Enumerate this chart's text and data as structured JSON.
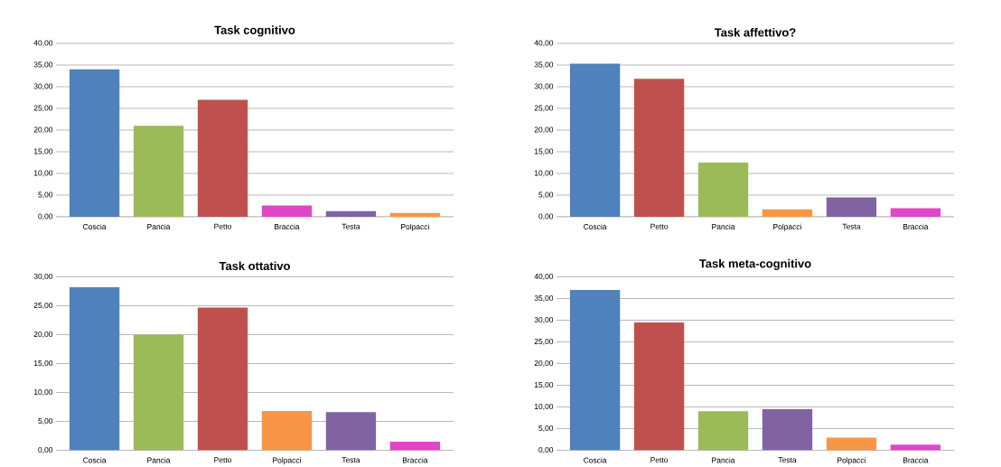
{
  "chart_data": [
    {
      "type": "bar",
      "title": "Task cognitivo",
      "categories": [
        "Coscia",
        "Pancia",
        "Petto",
        "Braccia",
        "Testa",
        "Polpacci"
      ],
      "values": [
        34,
        21,
        27,
        2.6,
        1.3,
        0.9
      ],
      "colors": [
        "#4f81bd",
        "#9bbb59",
        "#c0504d",
        "#e046c8",
        "#8064a2",
        "#f79646"
      ],
      "ylim": [
        0,
        40
      ],
      "yticks": [
        {
          "value": 0,
          "label": "0,00"
        },
        {
          "value": 5,
          "label": "5,00"
        },
        {
          "value": 10,
          "label": "10,00"
        },
        {
          "value": 15,
          "label": "15,00"
        },
        {
          "value": 20,
          "label": "20,00"
        },
        {
          "value": 25,
          "label": "25,00"
        },
        {
          "value": 30,
          "label": "30,00"
        },
        {
          "value": 35,
          "label": "35,00"
        },
        {
          "value": 40,
          "label": "40,00"
        }
      ],
      "grid": "y"
    },
    {
      "type": "bar",
      "title": "Task affettivo?",
      "categories": [
        "Coscia",
        "Petto",
        "Pancia",
        "Polpacci",
        "Testa",
        "Braccia"
      ],
      "values": [
        35.3,
        31.8,
        12.5,
        1.7,
        4.5,
        2.0
      ],
      "colors": [
        "#4f81bd",
        "#c0504d",
        "#9bbb59",
        "#f79646",
        "#8064a2",
        "#e046c8"
      ],
      "ylim": [
        0,
        40
      ],
      "yticks": [
        {
          "value": 0,
          "label": "0,00"
        },
        {
          "value": 5,
          "label": "5,00"
        },
        {
          "value": 10,
          "label": "10,00"
        },
        {
          "value": 15,
          "label": "15,00"
        },
        {
          "value": 20,
          "label": "20,00"
        },
        {
          "value": 25,
          "label": "25,00"
        },
        {
          "value": 30,
          "label": "30,00"
        },
        {
          "value": 35,
          "label": "35,00"
        },
        {
          "value": 40,
          "label": "40,00"
        }
      ],
      "grid": "y"
    },
    {
      "type": "bar",
      "title": "Task ottativo",
      "categories": [
        "Coscia",
        "Pancia",
        "Petto",
        "Polpacci",
        "Testa",
        "Braccia"
      ],
      "values": [
        28.2,
        20,
        24.7,
        6.8,
        6.6,
        1.5
      ],
      "colors": [
        "#4f81bd",
        "#9bbb59",
        "#c0504d",
        "#f79646",
        "#8064a2",
        "#e046c8"
      ],
      "ylim": [
        0,
        30
      ],
      "yticks": [
        {
          "value": 0,
          "label": "0,00"
        },
        {
          "value": 5,
          "label": "5,00"
        },
        {
          "value": 10,
          "label": "10,00"
        },
        {
          "value": 15,
          "label": "15,00"
        },
        {
          "value": 20,
          "label": "20,00"
        },
        {
          "value": 25,
          "label": "25,00"
        },
        {
          "value": 30,
          "label": "30,00"
        }
      ],
      "grid": "y"
    },
    {
      "type": "bar",
      "title": "Task meta-cognitivo",
      "categories": [
        "Coscia",
        "Petto",
        "Pancia",
        "Testa",
        "Polpacci",
        "Braccia"
      ],
      "values": [
        37,
        29.5,
        9,
        9.5,
        2.9,
        1.3
      ],
      "colors": [
        "#4f81bd",
        "#c0504d",
        "#9bbb59",
        "#8064a2",
        "#f79646",
        "#e046c8"
      ],
      "ylim": [
        0,
        40
      ],
      "yticks": [
        {
          "value": 0,
          "label": "0,00"
        },
        {
          "value": 5,
          "label": "5,00"
        },
        {
          "value": 10,
          "label": "10,00"
        },
        {
          "value": 15,
          "label": "15,00"
        },
        {
          "value": 20,
          "label": "20,00"
        },
        {
          "value": 25,
          "label": "25,00"
        },
        {
          "value": 30,
          "label": "30,00"
        },
        {
          "value": 35,
          "label": "35,00"
        },
        {
          "value": 40,
          "label": "40,00"
        }
      ],
      "grid": "y"
    }
  ]
}
